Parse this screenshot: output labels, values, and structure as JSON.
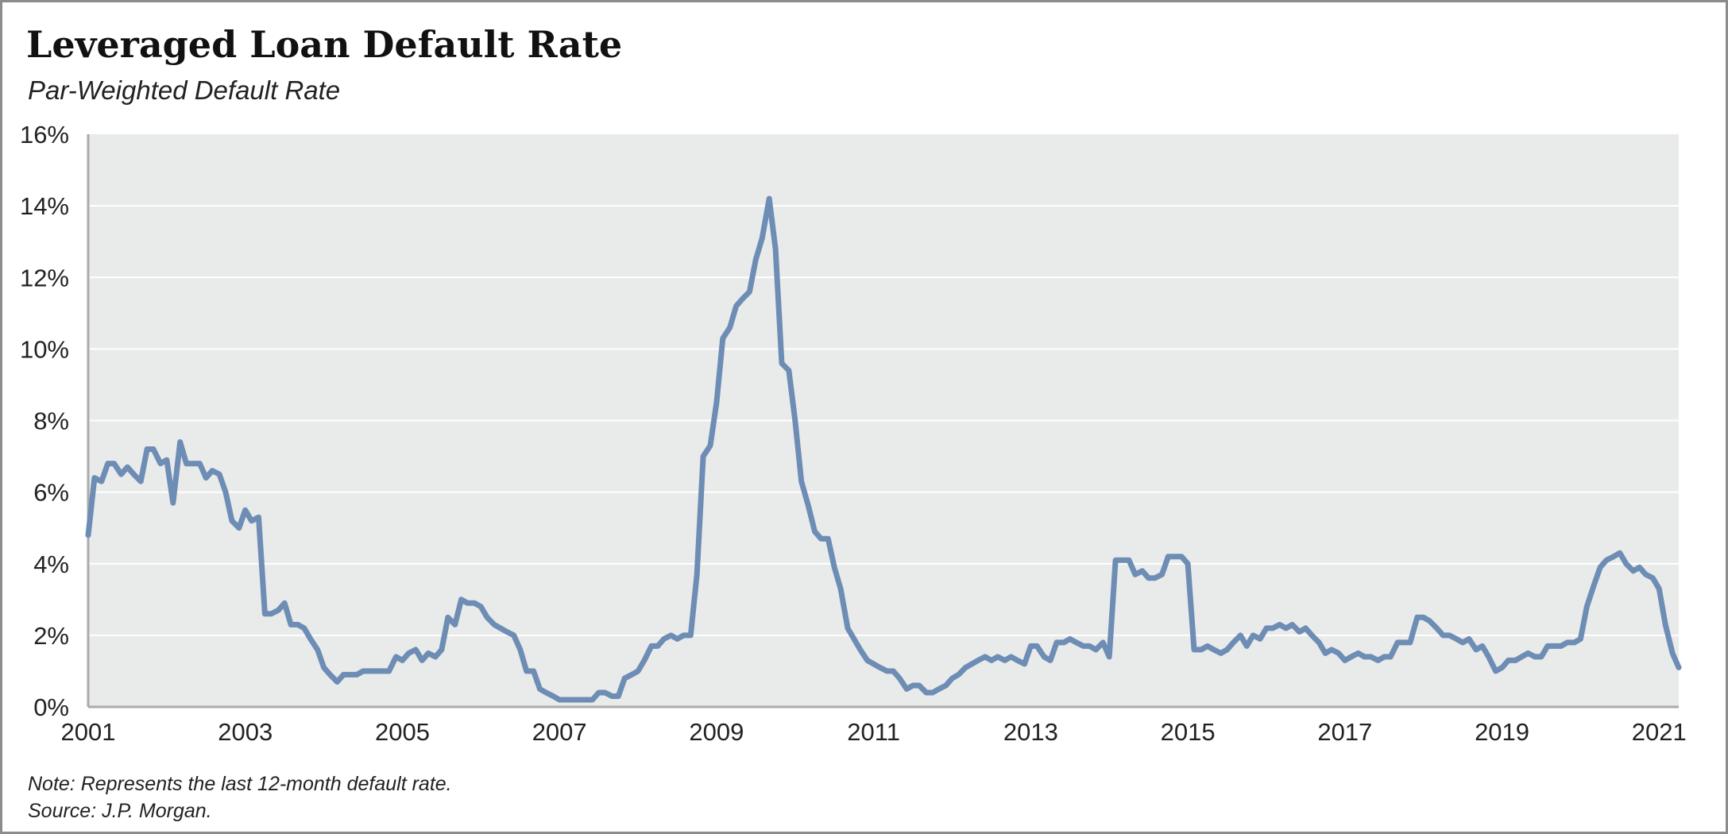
{
  "colors": {
    "plot_bg": "#e9eaea",
    "grid": "#ffffff",
    "line": "#6d8db5",
    "axis": "#aaaaaa"
  },
  "footer": {
    "note": "Note: Represents the last 12-month default rate.",
    "source": "Source: J.P. Morgan."
  },
  "chart_data": {
    "type": "line",
    "title": "Leveraged Loan Default Rate",
    "subtitle": "Par-Weighted Default Rate",
    "xlabel": "",
    "ylabel": "",
    "xlim": [
      2001.0,
      2021.25
    ],
    "ylim": [
      0,
      16
    ],
    "x_ticks": [
      "2001",
      "2003",
      "2005",
      "2007",
      "2009",
      "2011",
      "2013",
      "2015",
      "2017",
      "2019",
      "2021"
    ],
    "y_ticks": [
      "0%",
      "2%",
      "4%",
      "6%",
      "8%",
      "10%",
      "12%",
      "14%",
      "16%"
    ],
    "grid": true,
    "legend": "none",
    "series": [
      {
        "points": [
          [
            2001.0,
            4.8
          ],
          [
            2001.08,
            6.4
          ],
          [
            2001.17,
            6.3
          ],
          [
            2001.25,
            6.8
          ],
          [
            2001.33,
            6.8
          ],
          [
            2001.42,
            6.5
          ],
          [
            2001.5,
            6.7
          ],
          [
            2001.58,
            6.5
          ],
          [
            2001.67,
            6.3
          ],
          [
            2001.75,
            7.2
          ],
          [
            2001.83,
            7.2
          ],
          [
            2001.92,
            6.8
          ],
          [
            2002.0,
            6.9
          ],
          [
            2002.08,
            5.7
          ],
          [
            2002.17,
            7.4
          ],
          [
            2002.25,
            6.8
          ],
          [
            2002.33,
            6.8
          ],
          [
            2002.42,
            6.8
          ],
          [
            2002.5,
            6.4
          ],
          [
            2002.58,
            6.6
          ],
          [
            2002.67,
            6.5
          ],
          [
            2002.75,
            6.0
          ],
          [
            2002.83,
            5.2
          ],
          [
            2002.92,
            5.0
          ],
          [
            2003.0,
            5.5
          ],
          [
            2003.08,
            5.2
          ],
          [
            2003.17,
            5.3
          ],
          [
            2003.25,
            2.6
          ],
          [
            2003.33,
            2.6
          ],
          [
            2003.42,
            2.7
          ],
          [
            2003.5,
            2.9
          ],
          [
            2003.58,
            2.3
          ],
          [
            2003.67,
            2.3
          ],
          [
            2003.75,
            2.2
          ],
          [
            2003.83,
            1.9
          ],
          [
            2003.92,
            1.6
          ],
          [
            2004.0,
            1.1
          ],
          [
            2004.08,
            0.9
          ],
          [
            2004.17,
            0.7
          ],
          [
            2004.25,
            0.9
          ],
          [
            2004.33,
            0.9
          ],
          [
            2004.42,
            0.9
          ],
          [
            2004.5,
            1.0
          ],
          [
            2004.58,
            1.0
          ],
          [
            2004.67,
            1.0
          ],
          [
            2004.75,
            1.0
          ],
          [
            2004.83,
            1.0
          ],
          [
            2004.92,
            1.4
          ],
          [
            2005.0,
            1.3
          ],
          [
            2005.08,
            1.5
          ],
          [
            2005.17,
            1.6
          ],
          [
            2005.25,
            1.3
          ],
          [
            2005.33,
            1.5
          ],
          [
            2005.42,
            1.4
          ],
          [
            2005.5,
            1.6
          ],
          [
            2005.58,
            2.5
          ],
          [
            2005.67,
            2.3
          ],
          [
            2005.75,
            3.0
          ],
          [
            2005.83,
            2.9
          ],
          [
            2005.92,
            2.9
          ],
          [
            2006.0,
            2.8
          ],
          [
            2006.08,
            2.5
          ],
          [
            2006.17,
            2.3
          ],
          [
            2006.25,
            2.2
          ],
          [
            2006.33,
            2.1
          ],
          [
            2006.42,
            2.0
          ],
          [
            2006.5,
            1.6
          ],
          [
            2006.58,
            1.0
          ],
          [
            2006.67,
            1.0
          ],
          [
            2006.75,
            0.5
          ],
          [
            2006.83,
            0.4
          ],
          [
            2006.92,
            0.3
          ],
          [
            2007.0,
            0.2
          ],
          [
            2007.08,
            0.2
          ],
          [
            2007.17,
            0.2
          ],
          [
            2007.25,
            0.2
          ],
          [
            2007.33,
            0.2
          ],
          [
            2007.42,
            0.2
          ],
          [
            2007.5,
            0.4
          ],
          [
            2007.58,
            0.4
          ],
          [
            2007.67,
            0.3
          ],
          [
            2007.75,
            0.3
          ],
          [
            2007.83,
            0.8
          ],
          [
            2007.92,
            0.9
          ],
          [
            2008.0,
            1.0
          ],
          [
            2008.08,
            1.3
          ],
          [
            2008.17,
            1.7
          ],
          [
            2008.25,
            1.7
          ],
          [
            2008.33,
            1.9
          ],
          [
            2008.42,
            2.0
          ],
          [
            2008.5,
            1.9
          ],
          [
            2008.58,
            2.0
          ],
          [
            2008.67,
            2.0
          ],
          [
            2008.75,
            3.7
          ],
          [
            2008.83,
            7.0
          ],
          [
            2008.92,
            7.3
          ],
          [
            2009.0,
            8.5
          ],
          [
            2009.08,
            10.3
          ],
          [
            2009.17,
            10.6
          ],
          [
            2009.25,
            11.2
          ],
          [
            2009.33,
            11.4
          ],
          [
            2009.42,
            11.6
          ],
          [
            2009.5,
            12.5
          ],
          [
            2009.58,
            13.1
          ],
          [
            2009.67,
            14.2
          ],
          [
            2009.75,
            12.8
          ],
          [
            2009.83,
            9.6
          ],
          [
            2009.92,
            9.4
          ],
          [
            2010.0,
            8.0
          ],
          [
            2010.08,
            6.3
          ],
          [
            2010.17,
            5.6
          ],
          [
            2010.25,
            4.9
          ],
          [
            2010.33,
            4.7
          ],
          [
            2010.42,
            4.7
          ],
          [
            2010.5,
            3.9
          ],
          [
            2010.58,
            3.3
          ],
          [
            2010.67,
            2.2
          ],
          [
            2010.75,
            1.9
          ],
          [
            2010.83,
            1.6
          ],
          [
            2010.92,
            1.3
          ],
          [
            2011.0,
            1.2
          ],
          [
            2011.08,
            1.1
          ],
          [
            2011.17,
            1.0
          ],
          [
            2011.25,
            1.0
          ],
          [
            2011.33,
            0.8
          ],
          [
            2011.42,
            0.5
          ],
          [
            2011.5,
            0.6
          ],
          [
            2011.58,
            0.6
          ],
          [
            2011.67,
            0.4
          ],
          [
            2011.75,
            0.4
          ],
          [
            2011.83,
            0.5
          ],
          [
            2011.92,
            0.6
          ],
          [
            2012.0,
            0.8
          ],
          [
            2012.08,
            0.9
          ],
          [
            2012.17,
            1.1
          ],
          [
            2012.25,
            1.2
          ],
          [
            2012.33,
            1.3
          ],
          [
            2012.42,
            1.4
          ],
          [
            2012.5,
            1.3
          ],
          [
            2012.58,
            1.4
          ],
          [
            2012.67,
            1.3
          ],
          [
            2012.75,
            1.4
          ],
          [
            2012.83,
            1.3
          ],
          [
            2012.92,
            1.2
          ],
          [
            2013.0,
            1.7
          ],
          [
            2013.08,
            1.7
          ],
          [
            2013.17,
            1.4
          ],
          [
            2013.25,
            1.3
          ],
          [
            2013.33,
            1.8
          ],
          [
            2013.42,
            1.8
          ],
          [
            2013.5,
            1.9
          ],
          [
            2013.58,
            1.8
          ],
          [
            2013.67,
            1.7
          ],
          [
            2013.75,
            1.7
          ],
          [
            2013.83,
            1.6
          ],
          [
            2013.92,
            1.8
          ],
          [
            2014.0,
            1.4
          ],
          [
            2014.08,
            4.1
          ],
          [
            2014.17,
            4.1
          ],
          [
            2014.25,
            4.1
          ],
          [
            2014.33,
            3.7
          ],
          [
            2014.42,
            3.8
          ],
          [
            2014.5,
            3.6
          ],
          [
            2014.58,
            3.6
          ],
          [
            2014.67,
            3.7
          ],
          [
            2014.75,
            4.2
          ],
          [
            2014.83,
            4.2
          ],
          [
            2014.92,
            4.2
          ],
          [
            2015.0,
            4.0
          ],
          [
            2015.08,
            1.6
          ],
          [
            2015.17,
            1.6
          ],
          [
            2015.25,
            1.7
          ],
          [
            2015.33,
            1.6
          ],
          [
            2015.42,
            1.5
          ],
          [
            2015.5,
            1.6
          ],
          [
            2015.58,
            1.8
          ],
          [
            2015.67,
            2.0
          ],
          [
            2015.75,
            1.7
          ],
          [
            2015.83,
            2.0
          ],
          [
            2015.92,
            1.9
          ],
          [
            2016.0,
            2.2
          ],
          [
            2016.08,
            2.2
          ],
          [
            2016.17,
            2.3
          ],
          [
            2016.25,
            2.2
          ],
          [
            2016.33,
            2.3
          ],
          [
            2016.42,
            2.1
          ],
          [
            2016.5,
            2.2
          ],
          [
            2016.58,
            2.0
          ],
          [
            2016.67,
            1.8
          ],
          [
            2016.75,
            1.5
          ],
          [
            2016.83,
            1.6
          ],
          [
            2016.92,
            1.5
          ],
          [
            2017.0,
            1.3
          ],
          [
            2017.08,
            1.4
          ],
          [
            2017.17,
            1.5
          ],
          [
            2017.25,
            1.4
          ],
          [
            2017.33,
            1.4
          ],
          [
            2017.42,
            1.3
          ],
          [
            2017.5,
            1.4
          ],
          [
            2017.58,
            1.4
          ],
          [
            2017.67,
            1.8
          ],
          [
            2017.75,
            1.8
          ],
          [
            2017.83,
            1.8
          ],
          [
            2017.92,
            2.5
          ],
          [
            2018.0,
            2.5
          ],
          [
            2018.08,
            2.4
          ],
          [
            2018.17,
            2.2
          ],
          [
            2018.25,
            2.0
          ],
          [
            2018.33,
            2.0
          ],
          [
            2018.42,
            1.9
          ],
          [
            2018.5,
            1.8
          ],
          [
            2018.58,
            1.9
          ],
          [
            2018.67,
            1.6
          ],
          [
            2018.75,
            1.7
          ],
          [
            2018.83,
            1.4
          ],
          [
            2018.92,
            1.0
          ],
          [
            2019.0,
            1.1
          ],
          [
            2019.08,
            1.3
          ],
          [
            2019.17,
            1.3
          ],
          [
            2019.25,
            1.4
          ],
          [
            2019.33,
            1.5
          ],
          [
            2019.42,
            1.4
          ],
          [
            2019.5,
            1.4
          ],
          [
            2019.58,
            1.7
          ],
          [
            2019.67,
            1.7
          ],
          [
            2019.75,
            1.7
          ],
          [
            2019.83,
            1.8
          ],
          [
            2019.92,
            1.8
          ],
          [
            2020.0,
            1.9
          ],
          [
            2020.08,
            2.8
          ],
          [
            2020.17,
            3.4
          ],
          [
            2020.25,
            3.9
          ],
          [
            2020.33,
            4.1
          ],
          [
            2020.42,
            4.2
          ],
          [
            2020.5,
            4.3
          ],
          [
            2020.58,
            4.0
          ],
          [
            2020.67,
            3.8
          ],
          [
            2020.75,
            3.9
          ],
          [
            2020.83,
            3.7
          ],
          [
            2020.92,
            3.6
          ],
          [
            2021.0,
            3.3
          ],
          [
            2021.08,
            2.3
          ],
          [
            2021.17,
            1.5
          ],
          [
            2021.25,
            1.1
          ]
        ]
      }
    ]
  }
}
